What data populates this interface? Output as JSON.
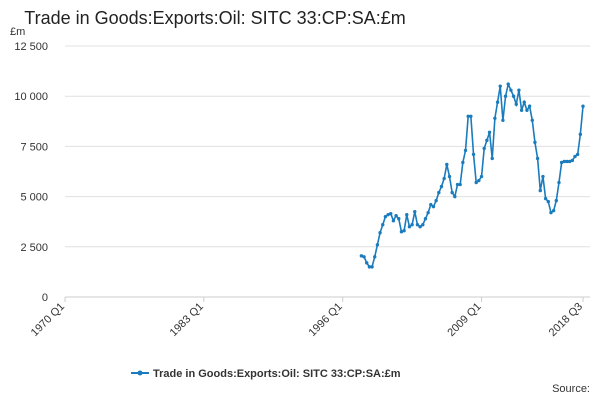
{
  "chart_data": {
    "type": "line",
    "title": "Trade in Goods:Exports:Oil: SITC 33:CP:SA:£m",
    "y_label": "£m",
    "source": "Source:",
    "grid": true,
    "legend": "bottom",
    "xlim": [
      1970,
      2018.5
    ],
    "xticks": [
      {
        "value": 1970,
        "label": "1970 Q1"
      },
      {
        "value": 1983,
        "label": "1983 Q1"
      },
      {
        "value": 1996,
        "label": "1996 Q1"
      },
      {
        "value": 2009,
        "label": "2009 Q1"
      },
      {
        "value": 2018.5,
        "label": "2018 Q3"
      }
    ],
    "ylim": [
      0,
      12500
    ],
    "yticks": [
      0,
      {
        "value": 2500,
        "label": "2 500"
      },
      {
        "value": 5000,
        "label": "5 000"
      },
      {
        "value": 7500,
        "label": "7 500"
      },
      {
        "value": 10000,
        "label": "10 000"
      },
      {
        "value": 12500,
        "label": "12 500"
      }
    ],
    "x": [
      1997.75,
      1998,
      1998.25,
      1998.5,
      1998.75,
      1999,
      1999.25,
      1999.5,
      1999.75,
      2000,
      2000.25,
      2000.5,
      2000.75,
      2001,
      2001.25,
      2001.5,
      2001.75,
      2002,
      2002.25,
      2002.5,
      2002.75,
      2003,
      2003.25,
      2003.5,
      2003.75,
      2004,
      2004.25,
      2004.5,
      2004.75,
      2005,
      2005.25,
      2005.5,
      2005.75,
      2006,
      2006.25,
      2006.5,
      2006.75,
      2007,
      2007.25,
      2007.5,
      2007.75,
      2008,
      2008.25,
      2008.5,
      2008.75,
      2009,
      2009.25,
      2009.5,
      2009.75,
      2010,
      2010.25,
      2010.5,
      2010.75,
      2011,
      2011.25,
      2011.5,
      2011.75,
      2012,
      2012.25,
      2012.5,
      2012.75,
      2013,
      2013.25,
      2013.5,
      2013.75,
      2014,
      2014.25,
      2014.5,
      2014.75,
      2015,
      2015.25,
      2015.5,
      2015.75,
      2016,
      2016.25,
      2016.5,
      2016.75,
      2017,
      2017.25,
      2017.5,
      2017.75,
      2018,
      2018.25,
      2018.5
    ],
    "series": [
      {
        "name": "Trade in Goods:Exports:Oil: SITC 33:CP:SA:£m",
        "color": "#1a7bbd",
        "values": [
          2050,
          2000,
          1700,
          1500,
          1500,
          2000,
          2600,
          3200,
          3600,
          4000,
          4100,
          4150,
          3800,
          4050,
          3900,
          3250,
          3300,
          4100,
          3500,
          3600,
          4250,
          3600,
          3500,
          3600,
          3900,
          4200,
          4600,
          4500,
          4800,
          5200,
          5500,
          5900,
          6600,
          6000,
          5200,
          5000,
          5600,
          5600,
          6700,
          7300,
          9000,
          9000,
          7100,
          5700,
          5800,
          6000,
          7400,
          7800,
          8200,
          6900,
          8900,
          9700,
          10500,
          8800,
          10000,
          10600,
          10300,
          10000,
          9600,
          10300,
          9300,
          9700,
          9300,
          9500,
          8800,
          7700,
          6900,
          5300,
          6000,
          4900,
          4750,
          4200,
          4300,
          4800,
          5700,
          6700,
          6750,
          6750,
          6750,
          6800,
          7000,
          7100,
          8100,
          9500
        ]
      }
    ]
  }
}
